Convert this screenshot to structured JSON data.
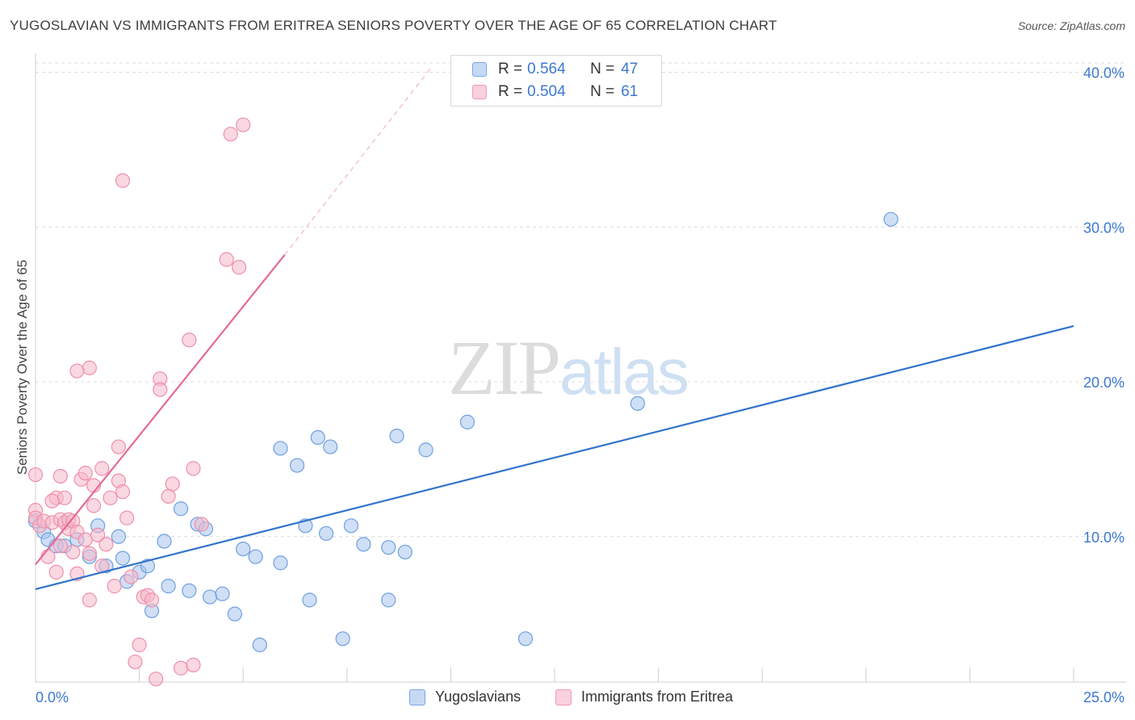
{
  "title": "YUGOSLAVIAN VS IMMIGRANTS FROM ERITREA SENIORS POVERTY OVER THE AGE OF 65 CORRELATION CHART",
  "source": "Source: ZipAtlas.com",
  "watermark": {
    "zip": "ZIP",
    "atlas": "atlas"
  },
  "legend_top": [
    {
      "r_label": "R =",
      "r_value": "0.564",
      "n_label": "N =",
      "n_value": "47",
      "color": "#a8c5ee"
    },
    {
      "r_label": "R =",
      "r_value": "0.504",
      "n_label": "N =",
      "n_value": "61",
      "color": "#f5b8c9"
    }
  ],
  "legend_bottom": [
    {
      "label": "Yugoslavians",
      "color": "#a8c5ee"
    },
    {
      "label": "Immigrants from Eritrea",
      "color": "#f5b8c9"
    }
  ],
  "chart_data": {
    "type": "scatter",
    "title": "YUGOSLAVIAN VS IMMIGRANTS FROM ERITREA SENIORS POVERTY OVER THE AGE OF 65 CORRELATION CHART",
    "xlabel": "",
    "ylabel": "Seniors Poverty Over the Age of 65",
    "xlim": [
      0,
      0.25
    ],
    "ylim": [
      0.6,
      40.6
    ],
    "x_tick_labels": [
      "0.0%",
      "25.0%"
    ],
    "y_ticks": [
      10,
      20,
      30,
      40
    ],
    "y_tick_labels": [
      "10.0%",
      "20.0%",
      "30.0%",
      "40.0%"
    ],
    "grid": true,
    "series": [
      {
        "name": "Yugoslavians",
        "color": "#6fa0e0",
        "fill": "#a8c5ee",
        "line_color": "#3173cc",
        "r": 0.564,
        "n": 47,
        "trend": {
          "x": [
            0.0,
            0.25
          ],
          "y": [
            6.6,
            23.6
          ],
          "dashed_extension": false
        },
        "points": [
          {
            "x": 0.0,
            "y": 11.0
          },
          {
            "x": 0.002,
            "y": 10.3
          },
          {
            "x": 0.003,
            "y": 9.8
          },
          {
            "x": 0.005,
            "y": 9.4
          },
          {
            "x": 0.007,
            "y": 9.4
          },
          {
            "x": 0.01,
            "y": 9.8
          },
          {
            "x": 0.013,
            "y": 8.7
          },
          {
            "x": 0.015,
            "y": 10.7
          },
          {
            "x": 0.017,
            "y": 8.1
          },
          {
            "x": 0.02,
            "y": 10.0
          },
          {
            "x": 0.021,
            "y": 8.6
          },
          {
            "x": 0.022,
            "y": 7.1
          },
          {
            "x": 0.025,
            "y": 7.7
          },
          {
            "x": 0.027,
            "y": 8.1
          },
          {
            "x": 0.028,
            "y": 5.2
          },
          {
            "x": 0.031,
            "y": 9.7
          },
          {
            "x": 0.032,
            "y": 6.8
          },
          {
            "x": 0.035,
            "y": 11.8
          },
          {
            "x": 0.037,
            "y": 6.5
          },
          {
            "x": 0.039,
            "y": 10.8
          },
          {
            "x": 0.041,
            "y": 10.5
          },
          {
            "x": 0.042,
            "y": 6.1
          },
          {
            "x": 0.045,
            "y": 6.3
          },
          {
            "x": 0.048,
            "y": 5.0
          },
          {
            "x": 0.05,
            "y": 9.2
          },
          {
            "x": 0.053,
            "y": 8.7
          },
          {
            "x": 0.054,
            "y": 3.0
          },
          {
            "x": 0.059,
            "y": 15.7
          },
          {
            "x": 0.059,
            "y": 8.3
          },
          {
            "x": 0.063,
            "y": 14.6
          },
          {
            "x": 0.065,
            "y": 10.7
          },
          {
            "x": 0.066,
            "y": 5.9
          },
          {
            "x": 0.068,
            "y": 16.4
          },
          {
            "x": 0.07,
            "y": 10.2
          },
          {
            "x": 0.071,
            "y": 15.8
          },
          {
            "x": 0.074,
            "y": 3.4
          },
          {
            "x": 0.076,
            "y": 10.7
          },
          {
            "x": 0.079,
            "y": 9.5
          },
          {
            "x": 0.085,
            "y": 9.3
          },
          {
            "x": 0.085,
            "y": 5.9
          },
          {
            "x": 0.087,
            "y": 16.5
          },
          {
            "x": 0.089,
            "y": 9.0
          },
          {
            "x": 0.094,
            "y": 15.6
          },
          {
            "x": 0.104,
            "y": 17.4
          },
          {
            "x": 0.118,
            "y": 3.4
          },
          {
            "x": 0.145,
            "y": 18.6
          },
          {
            "x": 0.206,
            "y": 30.5
          }
        ]
      },
      {
        "name": "Immigrants from Eritrea",
        "color": "#ee8fab",
        "fill": "#f5b8c9",
        "line_color": "#e56a94",
        "r": 0.504,
        "n": 61,
        "trend": {
          "x": [
            0.0,
            0.06
          ],
          "y": [
            8.2,
            28.2
          ],
          "dashed_extension": true,
          "dashed_to": {
            "x": 0.095,
            "y": 40.2
          }
        },
        "points": [
          {
            "x": 0.0,
            "y": 14.0
          },
          {
            "x": 0.0,
            "y": 11.7
          },
          {
            "x": 0.0,
            "y": 11.2
          },
          {
            "x": 0.001,
            "y": 10.7
          },
          {
            "x": 0.002,
            "y": 11.0
          },
          {
            "x": 0.003,
            "y": 8.7
          },
          {
            "x": 0.004,
            "y": 10.9
          },
          {
            "x": 0.005,
            "y": 12.5
          },
          {
            "x": 0.005,
            "y": 7.7
          },
          {
            "x": 0.006,
            "y": 11.1
          },
          {
            "x": 0.006,
            "y": 9.4
          },
          {
            "x": 0.007,
            "y": 10.9
          },
          {
            "x": 0.007,
            "y": 12.5
          },
          {
            "x": 0.008,
            "y": 10.5
          },
          {
            "x": 0.008,
            "y": 11.1
          },
          {
            "x": 0.009,
            "y": 11.0
          },
          {
            "x": 0.009,
            "y": 9.0
          },
          {
            "x": 0.01,
            "y": 7.6
          },
          {
            "x": 0.01,
            "y": 10.3
          },
          {
            "x": 0.011,
            "y": 13.7
          },
          {
            "x": 0.012,
            "y": 14.1
          },
          {
            "x": 0.012,
            "y": 9.8
          },
          {
            "x": 0.013,
            "y": 8.9
          },
          {
            "x": 0.013,
            "y": 5.9
          },
          {
            "x": 0.014,
            "y": 12.0
          },
          {
            "x": 0.014,
            "y": 13.3
          },
          {
            "x": 0.015,
            "y": 10.1
          },
          {
            "x": 0.016,
            "y": 14.4
          },
          {
            "x": 0.016,
            "y": 8.1
          },
          {
            "x": 0.017,
            "y": 9.5
          },
          {
            "x": 0.018,
            "y": 12.5
          },
          {
            "x": 0.019,
            "y": 6.8
          },
          {
            "x": 0.013,
            "y": 20.9
          },
          {
            "x": 0.01,
            "y": 20.7
          },
          {
            "x": 0.02,
            "y": 13.6
          },
          {
            "x": 0.02,
            "y": 15.8
          },
          {
            "x": 0.021,
            "y": 12.9
          },
          {
            "x": 0.022,
            "y": 11.2
          },
          {
            "x": 0.023,
            "y": 7.4
          },
          {
            "x": 0.024,
            "y": 1.9
          },
          {
            "x": 0.025,
            "y": 3.0
          },
          {
            "x": 0.026,
            "y": 6.1
          },
          {
            "x": 0.027,
            "y": 6.2
          },
          {
            "x": 0.028,
            "y": 5.9
          },
          {
            "x": 0.029,
            "y": 0.8
          },
          {
            "x": 0.021,
            "y": 33.0
          },
          {
            "x": 0.03,
            "y": 20.2
          },
          {
            "x": 0.03,
            "y": 19.5
          },
          {
            "x": 0.032,
            "y": 12.6
          },
          {
            "x": 0.033,
            "y": 13.4
          },
          {
            "x": 0.035,
            "y": 1.5
          },
          {
            "x": 0.037,
            "y": 22.7
          },
          {
            "x": 0.038,
            "y": 14.4
          },
          {
            "x": 0.038,
            "y": 1.7
          },
          {
            "x": 0.04,
            "y": 10.8
          },
          {
            "x": 0.046,
            "y": 27.9
          },
          {
            "x": 0.047,
            "y": 36.0
          },
          {
            "x": 0.049,
            "y": 27.4
          },
          {
            "x": 0.05,
            "y": 36.6
          },
          {
            "x": 0.006,
            "y": 13.9
          },
          {
            "x": 0.004,
            "y": 12.3
          }
        ]
      }
    ]
  }
}
